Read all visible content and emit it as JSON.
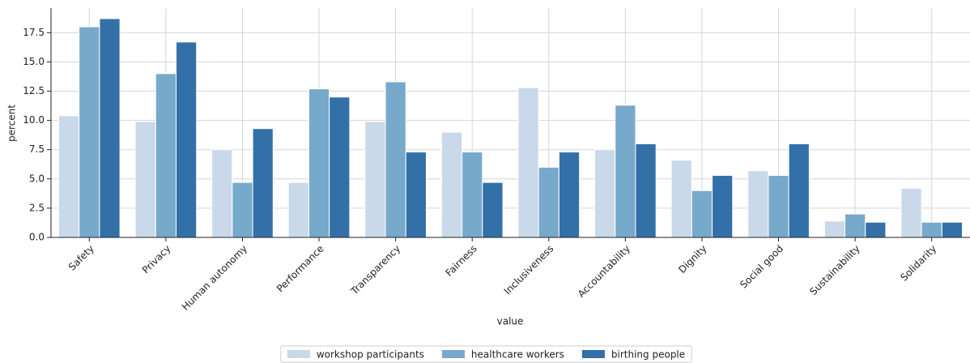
{
  "chart_data": {
    "type": "bar",
    "categories": [
      "Safety",
      "Privacy",
      "Human autonomy",
      "Performance",
      "Transparency",
      "Fairness",
      "Inclusiveness",
      "Accountability",
      "Dignity",
      "Social good",
      "Sustainability",
      "Solidarity"
    ],
    "series": [
      {
        "name": "workshop participants",
        "color": "#c9d9ea",
        "values": [
          10.4,
          9.9,
          7.5,
          4.7,
          9.9,
          9.0,
          12.8,
          7.5,
          6.6,
          5.7,
          1.4,
          4.2
        ]
      },
      {
        "name": "healthcare workers",
        "color": "#77a9cb",
        "values": [
          18.0,
          14.0,
          4.7,
          12.7,
          13.3,
          7.3,
          6.0,
          11.3,
          4.0,
          5.3,
          2.0,
          1.3
        ]
      },
      {
        "name": "birthing people",
        "color": "#3370a8",
        "values": [
          18.7,
          16.7,
          9.3,
          12.0,
          7.3,
          4.7,
          7.3,
          8.0,
          5.3,
          8.0,
          1.3,
          1.3
        ]
      }
    ],
    "x_label": "value",
    "y_label": "percent",
    "ylim": [
      0,
      19.6
    ],
    "yticks": [
      {
        "value": 0,
        "label": "0.0"
      },
      2.5,
      {
        "value": 5,
        "label": "5.0"
      },
      7.5,
      {
        "value": 10,
        "label": "10.0"
      },
      12.5,
      {
        "value": 15,
        "label": "15.0"
      },
      17.5
    ],
    "grid": true,
    "legend": "bottom"
  }
}
